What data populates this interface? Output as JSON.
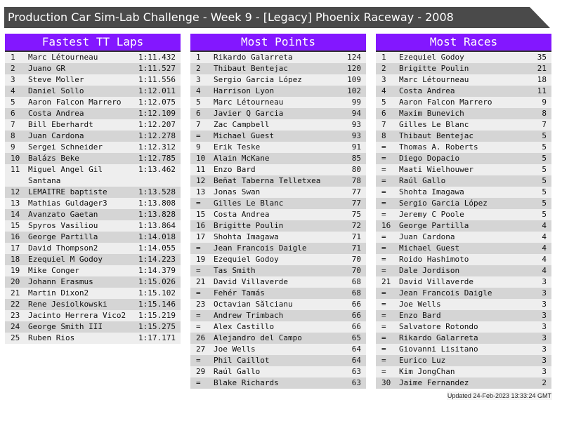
{
  "title": "Production Car Sim-Lab Challenge - Week 9 - [Legacy] Phoenix Raceway - 2008",
  "accent_color": "#8317ff",
  "tables": [
    {
      "heading": "Fastest TT Laps",
      "rows": [
        [
          "1",
          "Marc Létourneau",
          "1:11.432"
        ],
        [
          "2",
          "Juano GR",
          "1:11.527"
        ],
        [
          "3",
          "Steve Moller",
          "1:11.556"
        ],
        [
          "4",
          "Daniel Sollo",
          "1:12.011"
        ],
        [
          "5",
          "Aaron Falcon Marrero",
          "1:12.075"
        ],
        [
          "6",
          "Costa Andrea",
          "1:12.109"
        ],
        [
          "7",
          "Bill Eberhardt",
          "1:12.207"
        ],
        [
          "8",
          "Juan Cardona",
          "1:12.278"
        ],
        [
          "9",
          "Sergei Schneider",
          "1:12.312"
        ],
        [
          "10",
          "Balázs Beke",
          "1:12.785"
        ],
        [
          "11",
          "Miguel Angel Gil Santana",
          "1:13.462"
        ],
        [
          "12",
          "LEMAITRE baptiste",
          "1:13.528"
        ],
        [
          "13",
          "Mathias Guldager3",
          "1:13.808"
        ],
        [
          "14",
          "Avanzato Gaetan",
          "1:13.828"
        ],
        [
          "15",
          "Spyros Vasiliou",
          "1:13.864"
        ],
        [
          "16",
          "George Partilla",
          "1:14.018"
        ],
        [
          "17",
          "David Thompson2",
          "1:14.055"
        ],
        [
          "18",
          "Ezequiel M Godoy",
          "1:14.223"
        ],
        [
          "19",
          "Mike Conger",
          "1:14.379"
        ],
        [
          "20",
          "Johann Erasmus",
          "1:15.026"
        ],
        [
          "21",
          "Martin Dixon2",
          "1:15.102"
        ],
        [
          "22",
          "Rene Jesiolkowski",
          "1:15.146"
        ],
        [
          "23",
          "Jacinto Herrera Vico2",
          "1:15.219"
        ],
        [
          "24",
          "George Smith III",
          "1:15.275"
        ],
        [
          "25",
          "Ruben Rios",
          "1:17.171"
        ]
      ]
    },
    {
      "heading": "Most Points",
      "rows": [
        [
          "1",
          "Rikardo Galarreta",
          "124"
        ],
        [
          "2",
          "Thibaut Bentejac",
          "120"
        ],
        [
          "3",
          "Sergio Garcia López",
          "109"
        ],
        [
          "4",
          "Harrison Lyon",
          "102"
        ],
        [
          "5",
          "Marc Létourneau",
          "99"
        ],
        [
          "6",
          "Javier Q Garcia",
          "94"
        ],
        [
          "7",
          "Zac Campbell",
          "93"
        ],
        [
          "=",
          "Michael Guest",
          "93"
        ],
        [
          "9",
          "Erik Teske",
          "91"
        ],
        [
          "10",
          "Alain McKane",
          "85"
        ],
        [
          "11",
          "Enzo Bard",
          "80"
        ],
        [
          "12",
          "Beñat Taberna Telletxea",
          "78"
        ],
        [
          "13",
          "Jonas Swan",
          "77"
        ],
        [
          "=",
          "Gilles Le Blanc",
          "77"
        ],
        [
          "15",
          "Costa Andrea",
          "75"
        ],
        [
          "16",
          "Brigitte Poulin",
          "72"
        ],
        [
          "17",
          "Shohta Imagawa",
          "71"
        ],
        [
          "=",
          "Jean Francois Daigle",
          "71"
        ],
        [
          "19",
          "Ezequiel Godoy",
          "70"
        ],
        [
          "=",
          "Tas Smith",
          "70"
        ],
        [
          "21",
          "David Villaverde",
          "68"
        ],
        [
          "=",
          "Fehér Tamás",
          "68"
        ],
        [
          "23",
          "Octavian Sălcianu",
          "66"
        ],
        [
          "=",
          "Andrew Trimbach",
          "66"
        ],
        [
          "=",
          "Alex Castillo",
          "66"
        ],
        [
          "26",
          "Alejandro del Campo",
          "65"
        ],
        [
          "27",
          "Joe Wells",
          "64"
        ],
        [
          "=",
          "Phil Caillot",
          "64"
        ],
        [
          "29",
          "Raúl Gallo",
          "63"
        ],
        [
          "=",
          "Blake Richards",
          "63"
        ]
      ]
    },
    {
      "heading": "Most Races",
      "rows": [
        [
          "1",
          "Ezequiel Godoy",
          "35"
        ],
        [
          "2",
          "Brigitte Poulin",
          "21"
        ],
        [
          "3",
          "Marc Létourneau",
          "18"
        ],
        [
          "4",
          "Costa Andrea",
          "11"
        ],
        [
          "5",
          "Aaron Falcon Marrero",
          "9"
        ],
        [
          "6",
          "Maxim Bunevich",
          "8"
        ],
        [
          "7",
          "Gilles Le Blanc",
          "7"
        ],
        [
          "8",
          "Thibaut Bentejac",
          "5"
        ],
        [
          "=",
          "Thomas A. Roberts",
          "5"
        ],
        [
          "=",
          "Diego Dopacio",
          "5"
        ],
        [
          "=",
          "Maati Wielhouwer",
          "5"
        ],
        [
          "=",
          "Raúl Gallo",
          "5"
        ],
        [
          "=",
          "Shohta Imagawa",
          "5"
        ],
        [
          "=",
          "Sergio Garcia López",
          "5"
        ],
        [
          "=",
          "Jeremy C Poole",
          "5"
        ],
        [
          "16",
          "George Partilla",
          "4"
        ],
        [
          "=",
          "Juan Cardona",
          "4"
        ],
        [
          "=",
          "Michael Guest",
          "4"
        ],
        [
          "=",
          "Roido Hashimoto",
          "4"
        ],
        [
          "=",
          "Dale Jordison",
          "4"
        ],
        [
          "21",
          "David Villaverde",
          "3"
        ],
        [
          "=",
          "Jean Francois Daigle",
          "3"
        ],
        [
          "=",
          "Joe Wells",
          "3"
        ],
        [
          "=",
          "Enzo Bard",
          "3"
        ],
        [
          "=",
          "Salvatore Rotondo",
          "3"
        ],
        [
          "=",
          "Rikardo Galarreta",
          "3"
        ],
        [
          "=",
          "Giovanni Lisitano",
          "3"
        ],
        [
          "=",
          "Eurico Luz",
          "3"
        ],
        [
          "=",
          "Kim JongChan",
          "3"
        ],
        [
          "30",
          "Jaime Fernandez",
          "2"
        ]
      ]
    }
  ],
  "updated": "Updated 24-Feb-2023 13:33:24 GMT"
}
